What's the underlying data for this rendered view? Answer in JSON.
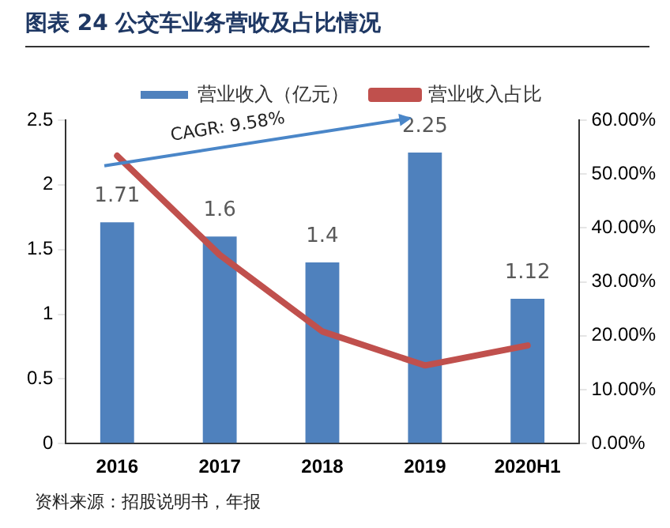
{
  "chart_data": {
    "type": "bar",
    "title": "图表 24  公交车业务营收及占比情况",
    "categories": [
      "2016",
      "2017",
      "2018",
      "2019",
      "2020H1"
    ],
    "series": [
      {
        "name": "营业收入（亿元）",
        "color": "#4f81bd",
        "values": [
          1.71,
          1.6,
          1.4,
          2.25,
          1.12
        ],
        "value_labels": [
          "1.71",
          "1.6",
          "1.4",
          "2.25",
          "1.12"
        ]
      },
      {
        "name": "营业收入占比",
        "type": "line",
        "axis": "y2",
        "color": "#c0504d",
        "values": [
          53.4,
          35,
          20.8,
          14.5,
          18.2
        ]
      }
    ],
    "ylim": [
      0,
      2.5
    ],
    "yticks": [
      0,
      0.5,
      1,
      1.5,
      2,
      2.5
    ],
    "y2lim": [
      0,
      60
    ],
    "y2ticks": [
      {
        "value": 0,
        "label": "0.00%"
      },
      {
        "value": 10,
        "label": "10.00%"
      },
      {
        "value": 20,
        "label": "20.00%"
      },
      {
        "value": 30,
        "label": "30.00%"
      },
      {
        "value": 40,
        "label": "40.00%"
      },
      {
        "value": 50,
        "label": "50.00%"
      },
      {
        "value": 60,
        "label": "60.00%"
      }
    ],
    "grid": false,
    "legend": "top",
    "marker": "none",
    "line_style": "solid",
    "annotations": [
      "CAGR: 9.58%",
      "资料来源：招股说明书，年报"
    ]
  }
}
